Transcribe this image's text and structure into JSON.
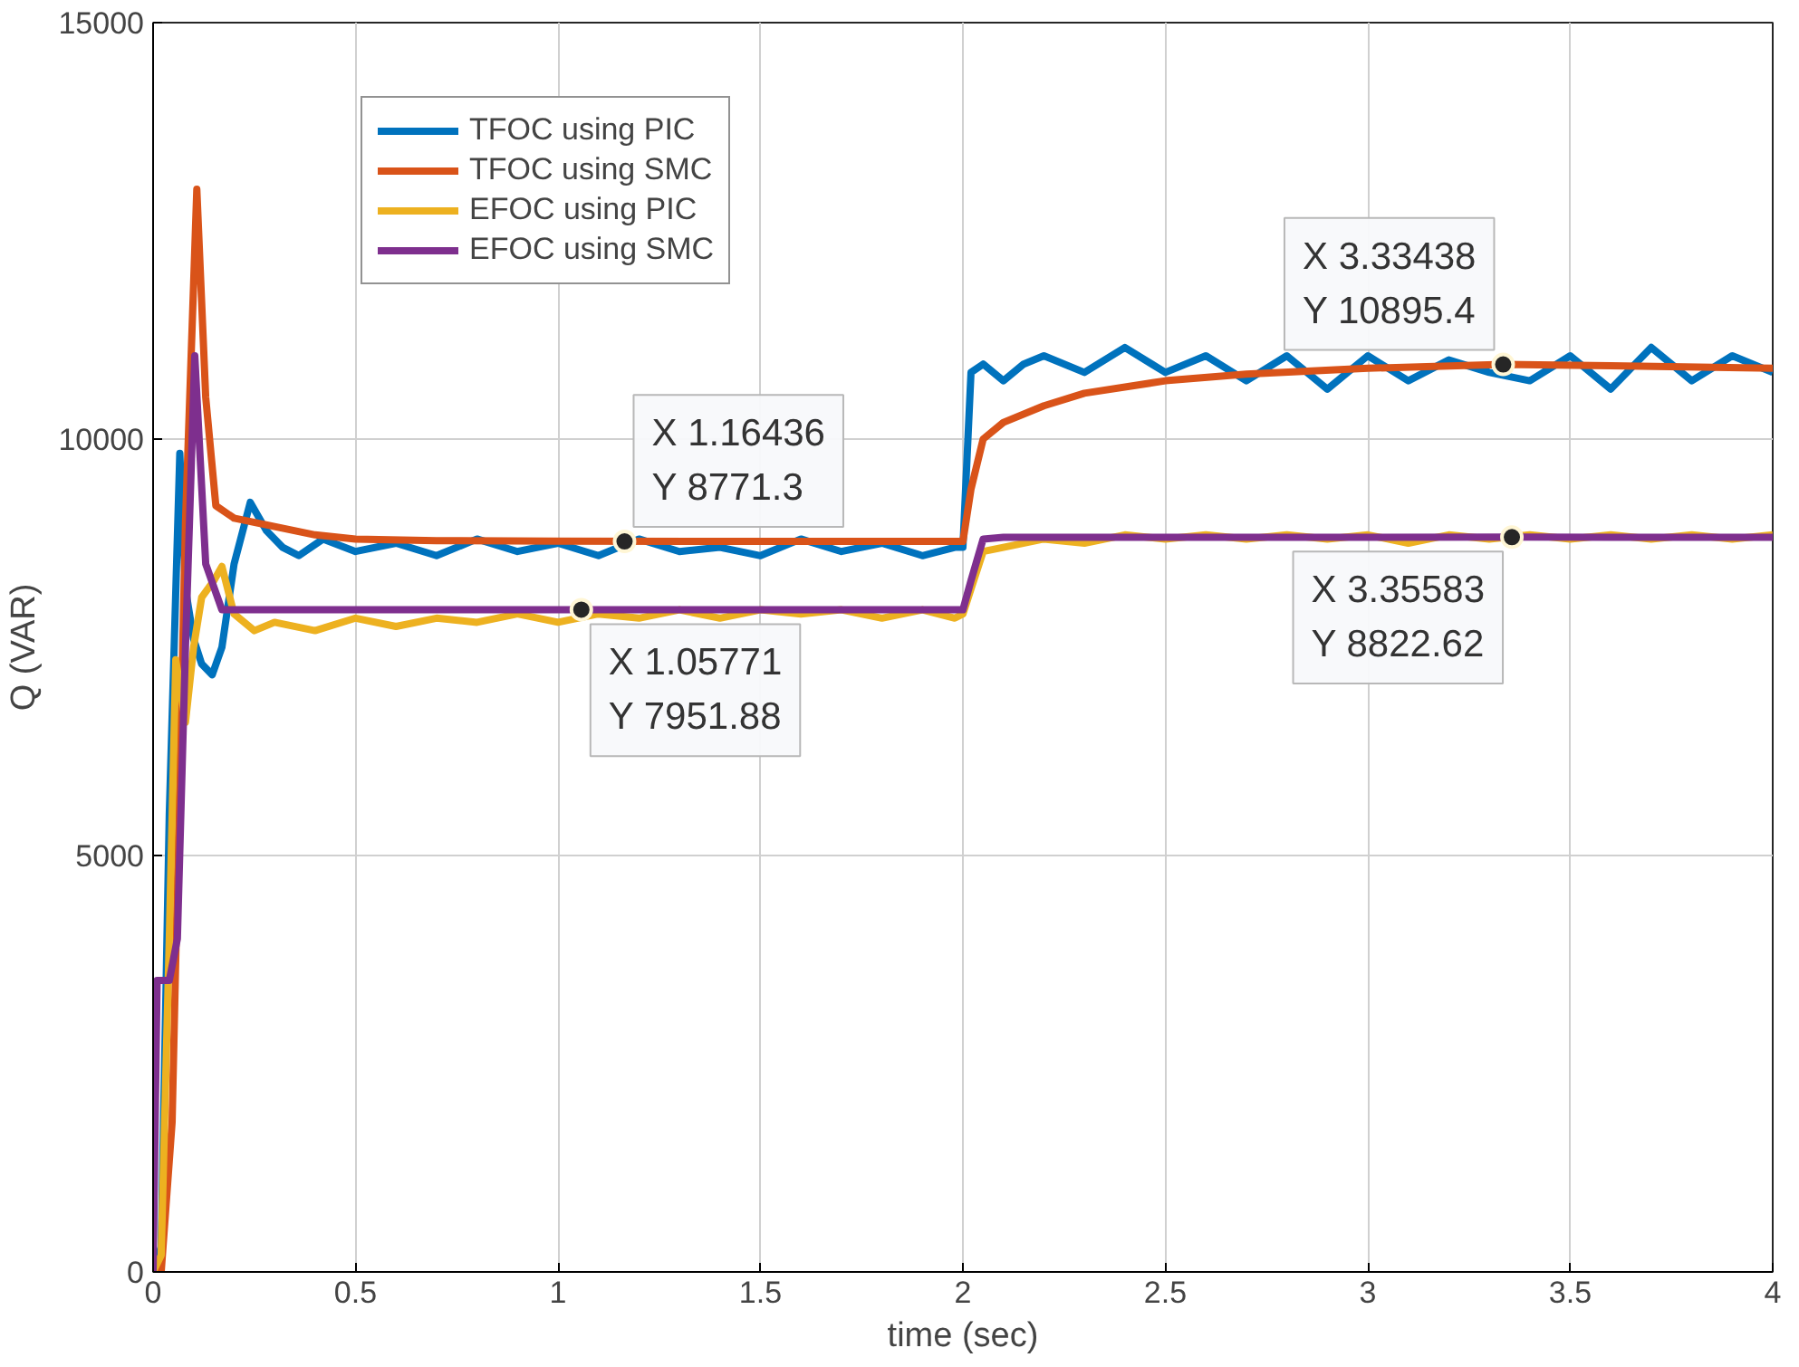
{
  "chart_data": {
    "type": "line",
    "xlabel": "time (sec)",
    "ylabel": "Q (VAR)",
    "xlim": [
      0,
      4
    ],
    "ylim": [
      0,
      15000
    ],
    "xticks": [
      0,
      0.5,
      1,
      1.5,
      2,
      2.5,
      3,
      3.5,
      4
    ],
    "yticks": [
      0,
      5000,
      10000,
      15000
    ],
    "grid": true,
    "legend": "top left",
    "line_style": "solid",
    "series": [
      {
        "name": "TFOC using PIC",
        "color": "#0072bd",
        "x": [
          0,
          0.02,
          0.04,
          0.066,
          0.08,
          0.1,
          0.12,
          0.146,
          0.17,
          0.2,
          0.24,
          0.28,
          0.32,
          0.36,
          0.42,
          0.5,
          0.6,
          0.7,
          0.8,
          0.9,
          1.0,
          1.1,
          1.2,
          1.3,
          1.4,
          1.5,
          1.6,
          1.7,
          1.8,
          1.9,
          1.98,
          2.0,
          2.02,
          2.05,
          2.1,
          2.15,
          2.2,
          2.3,
          2.4,
          2.5,
          2.6,
          2.7,
          2.8,
          2.9,
          3.0,
          3.1,
          3.2,
          3.3,
          3.4,
          3.5,
          3.6,
          3.7,
          3.8,
          3.9,
          4.0
        ],
        "values": [
          0,
          300,
          5500,
          9830,
          8200,
          7600,
          7300,
          7170,
          7500,
          8500,
          9240,
          8900,
          8700,
          8600,
          8800,
          8650,
          8750,
          8600,
          8800,
          8650,
          8750,
          8600,
          8800,
          8650,
          8700,
          8600,
          8800,
          8650,
          8750,
          8600,
          8700,
          8700,
          10800,
          10900,
          10700,
          10900,
          11000,
          10800,
          11100,
          10800,
          11000,
          10700,
          11000,
          10600,
          11000,
          10700,
          10950,
          10800,
          10700,
          11000,
          10600,
          11100,
          10700,
          11000,
          10800
        ]
      },
      {
        "name": "TFOC using SMC",
        "color": "#d95319",
        "x": [
          0,
          0.02,
          0.047,
          0.08,
          0.108,
          0.13,
          0.155,
          0.2,
          0.3,
          0.4,
          0.5,
          0.7,
          1.0,
          1.5,
          1.98,
          2.0,
          2.02,
          2.05,
          2.1,
          2.2,
          2.3,
          2.5,
          2.7,
          3.0,
          3.33438,
          3.6,
          4.0
        ],
        "values": [
          0,
          0,
          1800,
          9000,
          13000,
          10500,
          9200,
          9050,
          8950,
          8850,
          8800,
          8780,
          8775,
          8771,
          8771,
          8771,
          9400,
          10000,
          10200,
          10400,
          10550,
          10700,
          10780,
          10850,
          10895.4,
          10880,
          10850
        ]
      },
      {
        "name": "EFOC using PIC",
        "color": "#edb120",
        "x": [
          0,
          0.02,
          0.04,
          0.056,
          0.08,
          0.1,
          0.12,
          0.15,
          0.17,
          0.2,
          0.25,
          0.3,
          0.4,
          0.5,
          0.6,
          0.7,
          0.8,
          0.9,
          1.0,
          1.1,
          1.2,
          1.3,
          1.4,
          1.5,
          1.6,
          1.7,
          1.8,
          1.9,
          1.98,
          2.0,
          2.02,
          2.05,
          2.1,
          2.2,
          2.3,
          2.4,
          2.5,
          2.6,
          2.7,
          2.8,
          2.9,
          3.0,
          3.1,
          3.2,
          3.3,
          3.4,
          3.5,
          3.6,
          3.7,
          3.8,
          3.9,
          4.0
        ],
        "values": [
          0,
          200,
          4000,
          7350,
          6600,
          7500,
          8100,
          8300,
          8470,
          7900,
          7700,
          7800,
          7700,
          7850,
          7750,
          7850,
          7800,
          7900,
          7800,
          7900,
          7850,
          7950,
          7850,
          7950,
          7900,
          7950,
          7850,
          7950,
          7850,
          7900,
          8200,
          8650,
          8700,
          8800,
          8750,
          8850,
          8800,
          8850,
          8800,
          8850,
          8800,
          8850,
          8750,
          8850,
          8800,
          8850,
          8800,
          8850,
          8800,
          8850,
          8800,
          8850
        ]
      },
      {
        "name": "EFOC using SMC",
        "color": "#7e2f8e",
        "x": [
          0,
          0.01,
          0.04,
          0.06,
          0.08,
          0.103,
          0.13,
          0.17,
          0.3,
          1.05771,
          2.0,
          2.02,
          2.05,
          2.1,
          3.35583,
          4.0
        ],
        "values": [
          0,
          3500,
          3500,
          4000,
          7500,
          11000,
          8500,
          7950,
          7950,
          7951.88,
          7950,
          8300,
          8800,
          8820,
          8822.62,
          8820
        ]
      }
    ],
    "annotations": [
      {
        "text": "X 1.16436\nY 8771.3",
        "x": 1.16436,
        "y": 8771.3
      },
      {
        "text": "X 1.05771\nY 7951.88",
        "x": 1.05771,
        "y": 7951.88
      },
      {
        "text": "X 3.33438\nY 10895.4",
        "x": 3.33438,
        "y": 10895.4
      },
      {
        "text": "X 3.35583\nY 8822.62",
        "x": 3.35583,
        "y": 8822.62
      }
    ]
  }
}
